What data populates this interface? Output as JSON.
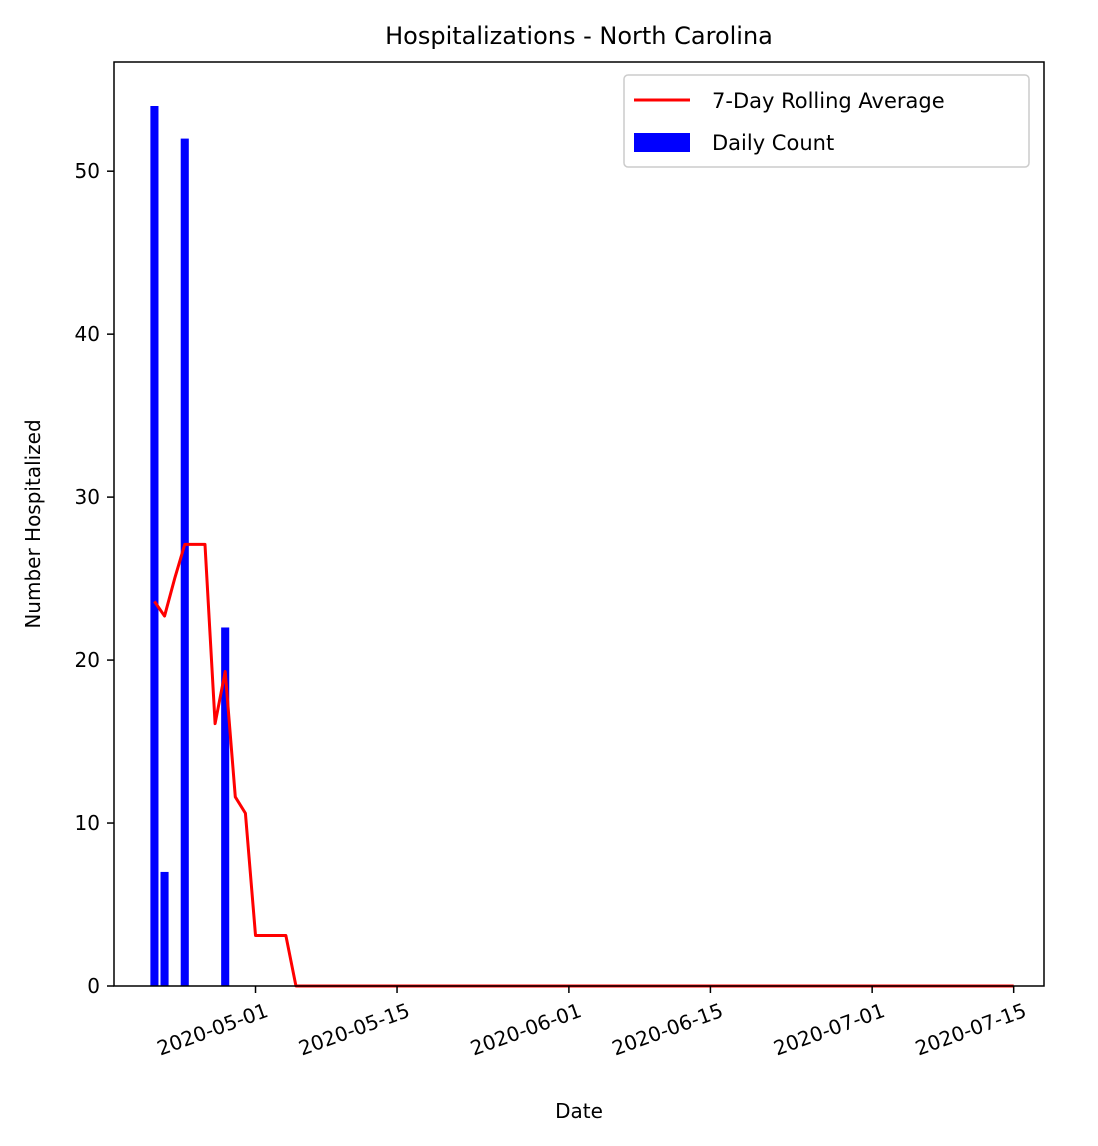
{
  "chart_data": {
    "type": "bar+line",
    "title": "Hospitalizations - North Carolina",
    "xlabel": "Date",
    "ylabel": "Number Hospitalized",
    "xlim": [
      "2020-04-17",
      "2020-07-18"
    ],
    "ylim": [
      0,
      56.7
    ],
    "x_ticks": [
      "2020-05-01",
      "2020-05-15",
      "2020-06-01",
      "2020-06-15",
      "2020-07-01",
      "2020-07-15"
    ],
    "y_ticks": [
      0,
      10,
      20,
      30,
      40,
      50
    ],
    "grid": false,
    "legend_position": "top-right",
    "series": [
      {
        "name": "Daily Count",
        "kind": "bar",
        "color": "#0000ff",
        "points": [
          {
            "x": "2020-04-21",
            "y": 54
          },
          {
            "x": "2020-04-22",
            "y": 7
          },
          {
            "x": "2020-04-24",
            "y": 52
          },
          {
            "x": "2020-04-28",
            "y": 22
          }
        ]
      },
      {
        "name": "7-Day Rolling Average",
        "kind": "line",
        "color": "#ff0000",
        "points": [
          {
            "x": "2020-04-21",
            "y": 23.6
          },
          {
            "x": "2020-04-22",
            "y": 22.7
          },
          {
            "x": "2020-04-23",
            "y": 25.0
          },
          {
            "x": "2020-04-24",
            "y": 27.1
          },
          {
            "x": "2020-04-25",
            "y": 27.1
          },
          {
            "x": "2020-04-26",
            "y": 27.1
          },
          {
            "x": "2020-04-27",
            "y": 16.1
          },
          {
            "x": "2020-04-28",
            "y": 19.3
          },
          {
            "x": "2020-04-29",
            "y": 11.6
          },
          {
            "x": "2020-04-30",
            "y": 10.6
          },
          {
            "x": "2020-05-01",
            "y": 3.1
          },
          {
            "x": "2020-05-02",
            "y": 3.1
          },
          {
            "x": "2020-05-03",
            "y": 3.1
          },
          {
            "x": "2020-05-04",
            "y": 3.1
          },
          {
            "x": "2020-05-05",
            "y": 0
          },
          {
            "x": "2020-07-15",
            "y": 0
          }
        ]
      }
    ]
  }
}
